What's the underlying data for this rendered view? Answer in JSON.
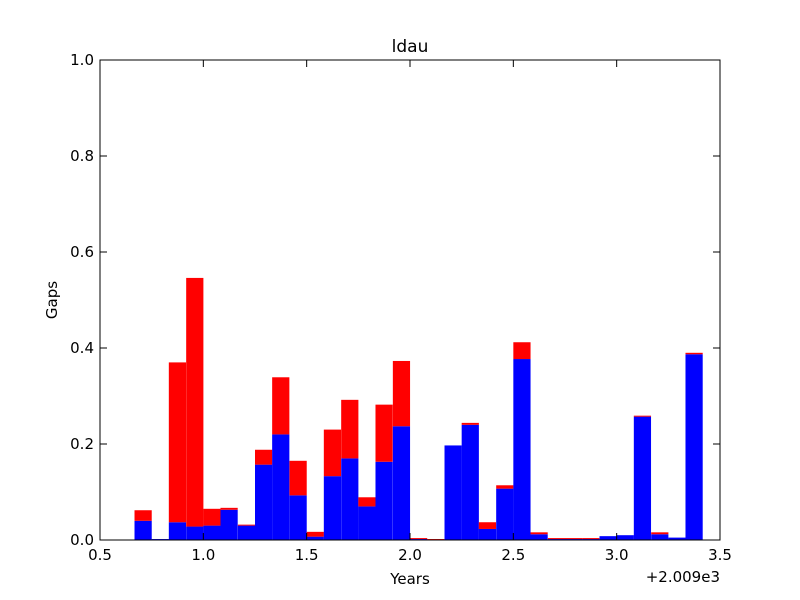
{
  "chart_data": {
    "type": "bar",
    "stacked": true,
    "title": "ldau",
    "xlabel": "Years",
    "ylabel": "Gaps",
    "x_offset_label": "+2.009e3",
    "xlim": [
      0.5,
      3.5
    ],
    "ylim": [
      0.0,
      1.0
    ],
    "bin_width": 0.0833,
    "xticks": [
      0.5,
      1.0,
      1.5,
      2.0,
      2.5,
      3.0,
      3.5
    ],
    "xtick_labels": [
      "0.5",
      "1.0",
      "1.5",
      "2.0",
      "2.5",
      "3.0",
      "3.5"
    ],
    "yticks": [
      0.0,
      0.2,
      0.4,
      0.6,
      0.8,
      1.0
    ],
    "ytick_labels": [
      "0.0",
      "0.2",
      "0.4",
      "0.6",
      "0.8",
      "1.0"
    ],
    "grid": false,
    "x": [
      0.667,
      0.75,
      0.833,
      0.917,
      1.0,
      1.083,
      1.167,
      1.25,
      1.333,
      1.417,
      1.5,
      1.583,
      1.667,
      1.75,
      1.833,
      1.917,
      2.0,
      2.083,
      2.167,
      2.25,
      2.333,
      2.417,
      2.5,
      2.583,
      2.667,
      2.75,
      2.833,
      2.917,
      3.0,
      3.083,
      3.167,
      3.25,
      3.333
    ],
    "series": [
      {
        "color": "#0000ff",
        "values": [
          0.04,
          0.002,
          0.037,
          0.028,
          0.03,
          0.063,
          0.03,
          0.157,
          0.22,
          0.093,
          0.007,
          0.133,
          0.17,
          0.07,
          0.163,
          0.237,
          0.002,
          0.0,
          0.197,
          0.24,
          0.023,
          0.107,
          0.377,
          0.012,
          0.002,
          0.002,
          0.002,
          0.008,
          0.01,
          0.257,
          0.012,
          0.005,
          0.387
        ]
      },
      {
        "color": "#ff0000",
        "values": [
          0.022,
          0.0,
          0.333,
          0.518,
          0.035,
          0.004,
          0.002,
          0.031,
          0.119,
          0.072,
          0.01,
          0.097,
          0.122,
          0.019,
          0.119,
          0.136,
          0.002,
          0.002,
          0.0,
          0.004,
          0.014,
          0.007,
          0.035,
          0.004,
          0.002,
          0.002,
          0.002,
          0.0,
          0.0,
          0.002,
          0.004,
          0.0,
          0.003
        ]
      }
    ]
  }
}
